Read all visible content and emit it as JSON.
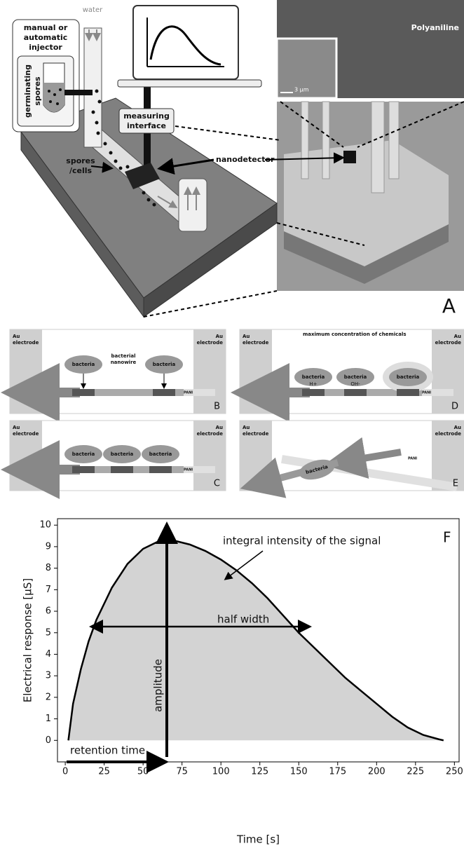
{
  "figure": {
    "panel_a": {
      "injector": [
        "manual or",
        "automatic",
        "injector"
      ],
      "water": "water",
      "spores": [
        "germinating",
        "spores"
      ],
      "interface": [
        "measuring",
        "interface"
      ],
      "cells": [
        "spores",
        "/cells"
      ],
      "detector": "nanodetector",
      "sem": "Polyaniline",
      "scale": "3 µm",
      "letter": "A"
    },
    "panels": [
      {
        "letter": "B",
        "electrode_left": [
          "Au",
          "electrode"
        ],
        "electrode_right": [
          "Au",
          "electrode"
        ],
        "bacteria": [
          "bacteria",
          "bacteria"
        ],
        "note": [
          "bacterial",
          "nanowire"
        ],
        "pani": "PANI"
      },
      {
        "letter": "D",
        "electrode_left": [
          "Au",
          "electrode"
        ],
        "electrode_right": [
          "Au",
          "electrode"
        ],
        "bacteria": [
          "bacteria",
          "bacteria",
          "bacteria"
        ],
        "note": [
          "maximum concentration of chemicals"
        ],
        "ions": [
          "H+",
          "OH-"
        ],
        "pani": "PANI"
      },
      {
        "letter": "C",
        "electrode_left": [
          "Au",
          "electrode"
        ],
        "electrode_right": [
          "Au",
          "electrode"
        ],
        "bacteria": [
          "bacteria",
          "bacteria",
          "bacteria"
        ],
        "pani": "PANI"
      },
      {
        "letter": "E",
        "electrode_left": [
          "Au",
          "electrode"
        ],
        "electrode_right": [
          "Au",
          "electrode"
        ],
        "bacteria": [
          "bacteria"
        ],
        "pani": "PANI"
      }
    ]
  },
  "chart_data": {
    "type": "area",
    "letter": "F",
    "xlabel": "Time [s]",
    "ylabel": "Electrical response [µS]",
    "x": [
      2,
      5,
      10,
      15,
      20,
      30,
      40,
      50,
      60,
      65,
      70,
      80,
      90,
      100,
      110,
      120,
      130,
      140,
      150,
      160,
      170,
      180,
      190,
      200,
      210,
      220,
      230,
      240,
      243
    ],
    "values": [
      0,
      1.7,
      3.3,
      4.6,
      5.6,
      7.1,
      8.2,
      8.9,
      9.25,
      9.3,
      9.28,
      9.1,
      8.8,
      8.4,
      7.9,
      7.3,
      6.6,
      5.8,
      5.0,
      4.3,
      3.6,
      2.9,
      2.3,
      1.7,
      1.1,
      0.6,
      0.25,
      0.05,
      0
    ],
    "color": "#d3d3d3",
    "xlim": [
      -5,
      253
    ],
    "ylim": [
      -1,
      10.3
    ],
    "xticks": [
      0,
      25,
      50,
      75,
      100,
      125,
      150,
      175,
      200,
      225,
      250
    ],
    "yticks": [
      0,
      1,
      2,
      3,
      4,
      5,
      6,
      7,
      8,
      9,
      10
    ],
    "annotations": [
      "integral intensity of the signal",
      "half width",
      "amplitude",
      "retention time"
    ]
  }
}
